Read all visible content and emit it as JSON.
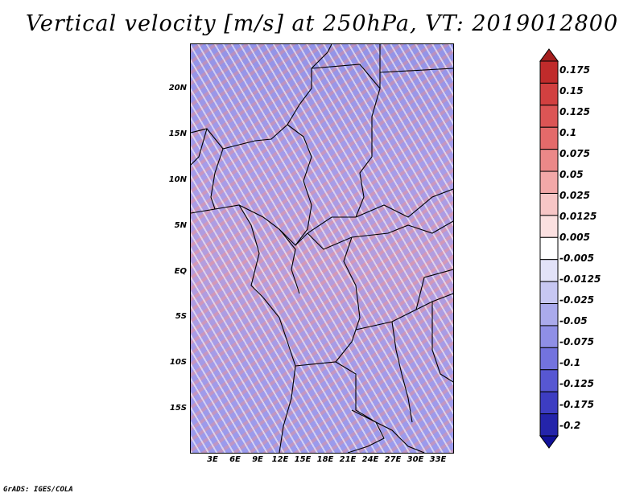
{
  "title": "Vertical velocity [m/s] at 250hPa, VT: 2019012800",
  "footer": "GrADS: IGES/COLA",
  "map": {
    "lon_range": [
      0,
      35
    ],
    "lat_range": [
      -20,
      25
    ],
    "y_ticks": [
      "20N",
      "15N",
      "10N",
      "5N",
      "EQ",
      "5S",
      "10S",
      "15S"
    ],
    "x_ticks": [
      "3E",
      "6E",
      "9E",
      "12E",
      "15E",
      "18E",
      "21E",
      "24E",
      "27E",
      "30E",
      "33E"
    ]
  },
  "colorbar": {
    "levels": [
      "0.175",
      "0.15",
      "0.125",
      "0.1",
      "0.075",
      "0.05",
      "0.025",
      "0.0125",
      "0.005",
      "-0.005",
      "-0.0125",
      "-0.025",
      "-0.05",
      "-0.075",
      "-0.1",
      "-0.125",
      "-0.175",
      "-0.2"
    ],
    "colors": [
      "#a51e1e",
      "#c02b2b",
      "#d24040",
      "#dc5555",
      "#e46a6a",
      "#eb8888",
      "#f2a8a8",
      "#f7c6c6",
      "#fbe0e0",
      "#ffffff",
      "#e2e2f8",
      "#c7c7f2",
      "#aaaaec",
      "#8f8fe6",
      "#7373de",
      "#5757d2",
      "#3d3dc2",
      "#2424aa",
      "#11119a"
    ]
  }
}
